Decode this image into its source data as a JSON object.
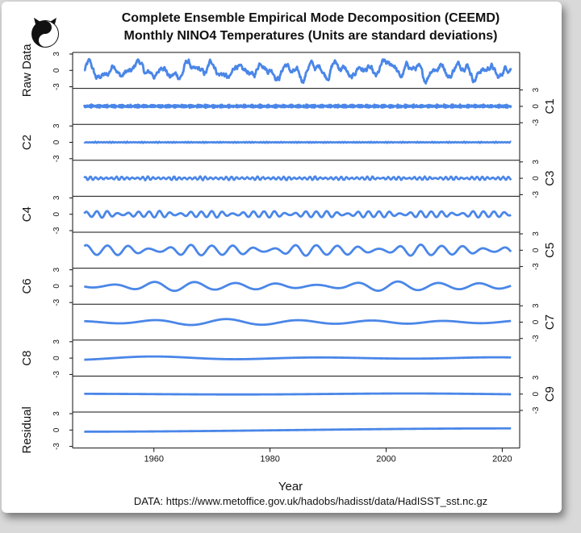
{
  "title_line1": "Complete Ensemble Empirical Mode Decomposition (CEEMD)",
  "title_line2": "Monthly NINO4 Temperatures (Units are standard deviations)",
  "logo": "yin-yang-icon",
  "source": "DATA: https://www.metoffice.gov.uk/hadobs/hadisst/data/HadISST_sst.nc.gz",
  "colors": {
    "series": "#4a86e8",
    "axis": "#111111"
  },
  "chart_data": {
    "type": "line",
    "xlabel": "Year",
    "xlim": [
      1946,
      2023
    ],
    "x_ticks": [
      1960,
      1980,
      2000,
      2020
    ],
    "x_tick_labels": [
      "1960",
      "1980",
      "2000",
      "2020"
    ],
    "ylim": [
      -3,
      3
    ],
    "y_ticks": [
      -3,
      0,
      3
    ],
    "y_tick_labels": [
      "-3",
      "0",
      "3"
    ],
    "data_x_range": [
      1948,
      2021.5
    ],
    "panels": [
      {
        "name": "Raw Data",
        "axis_side": "left",
        "approx_amplitude": 1.6,
        "dominant_period_years": 4.5,
        "trend": "none"
      },
      {
        "name": "C1",
        "axis_side": "right",
        "approx_amplitude": 0.3,
        "dominant_period_years": 0.25,
        "trend": "none"
      },
      {
        "name": "C2",
        "axis_side": "left",
        "approx_amplitude": 0.1,
        "dominant_period_years": 0.5,
        "trend": "none"
      },
      {
        "name": "C3",
        "axis_side": "right",
        "approx_amplitude": 0.3,
        "dominant_period_years": 0.9,
        "trend": "none"
      },
      {
        "name": "C4",
        "axis_side": "left",
        "approx_amplitude": 0.6,
        "dominant_period_years": 1.8,
        "trend": "none"
      },
      {
        "name": "C5",
        "axis_side": "right",
        "approx_amplitude": 1.0,
        "dominant_period_years": 3.6,
        "trend": "none"
      },
      {
        "name": "C6",
        "axis_side": "left",
        "approx_amplitude": 0.8,
        "dominant_period_years": 7.0,
        "trend": "none"
      },
      {
        "name": "C7",
        "axis_side": "right",
        "approx_amplitude": 0.5,
        "dominant_period_years": 12.5,
        "trend": "none"
      },
      {
        "name": "C8",
        "axis_side": "left",
        "approx_amplitude": 0.3,
        "dominant_period_years": 29.0,
        "trend": "none"
      },
      {
        "name": "C9",
        "axis_side": "right",
        "approx_amplitude": 0.1,
        "dominant_period_years": 60.0,
        "trend": "none"
      },
      {
        "name": "Residual",
        "axis_side": "left",
        "approx_amplitude": 0.0,
        "dominant_period_years": 0,
        "trend": "rising from -0.3 to 0.3"
      }
    ]
  }
}
